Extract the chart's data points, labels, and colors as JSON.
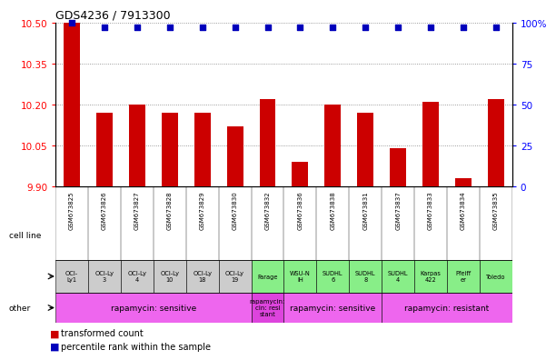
{
  "title": "GDS4236 / 7913300",
  "samples": [
    "GSM673825",
    "GSM673826",
    "GSM673827",
    "GSM673828",
    "GSM673829",
    "GSM673830",
    "GSM673832",
    "GSM673836",
    "GSM673838",
    "GSM673831",
    "GSM673837",
    "GSM673833",
    "GSM673834",
    "GSM673835"
  ],
  "bar_values": [
    10.5,
    10.17,
    10.2,
    10.17,
    10.17,
    10.12,
    10.22,
    9.99,
    10.2,
    10.17,
    10.04,
    10.21,
    9.93,
    10.22
  ],
  "percentile_values": [
    100,
    97,
    97,
    97,
    97,
    97,
    97,
    97,
    97,
    97,
    97,
    97,
    97,
    97
  ],
  "ylim_left": [
    9.9,
    10.5
  ],
  "ylim_right": [
    0,
    100
  ],
  "yticks_left": [
    9.9,
    10.05,
    10.2,
    10.35,
    10.5
  ],
  "yticks_right": [
    0,
    25,
    50,
    75,
    100
  ],
  "bar_color": "#cc0000",
  "dot_color": "#0000bb",
  "cell_lines": [
    "OCI-\nLy1",
    "OCI-Ly\n3",
    "OCI-Ly\n4",
    "OCI-Ly\n10",
    "OCI-Ly\n18",
    "OCI-Ly\n19",
    "Farage",
    "WSU-N\nIH",
    "SUDHL\n6",
    "SUDHL\n8",
    "SUDHL\n4",
    "Karpas\n422",
    "Pfeiff\ner",
    "Toledo"
  ],
  "cell_line_bg": [
    "#cccccc",
    "#cccccc",
    "#cccccc",
    "#cccccc",
    "#cccccc",
    "#cccccc",
    "#88ee88",
    "#88ee88",
    "#88ee88",
    "#88ee88",
    "#88ee88",
    "#88ee88",
    "#88ee88",
    "#88ee88"
  ],
  "other_groups": [
    {
      "label": "rapamycin: sensitive",
      "start": 0,
      "end": 5,
      "color": "#ee66ee"
    },
    {
      "label": "rapamycin:\ncin: resi\nstant",
      "start": 6,
      "end": 6,
      "color": "#dd44dd"
    },
    {
      "label": "rapamycin: sensitive",
      "start": 7,
      "end": 9,
      "color": "#ee66ee"
    },
    {
      "label": "rapamycin: resistant",
      "start": 10,
      "end": 13,
      "color": "#ee66ee"
    }
  ],
  "left_labels": [
    "cell line",
    "other"
  ],
  "legend": [
    {
      "label": "transformed count",
      "color": "#cc0000"
    },
    {
      "label": "percentile rank within the sample",
      "color": "#0000bb"
    }
  ]
}
